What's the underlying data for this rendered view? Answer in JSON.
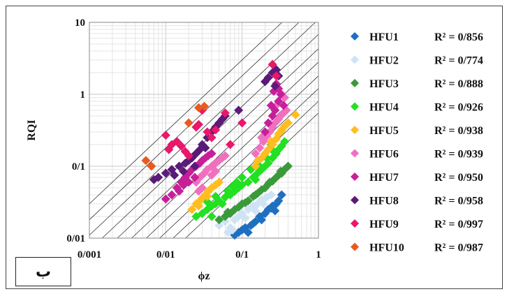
{
  "chart_data": {
    "type": "scatter",
    "xlabel": "ϕz",
    "ylabel": "RQI",
    "xscale": "log",
    "yscale": "log",
    "xlim": [
      0.001,
      1
    ],
    "ylim": [
      0.01,
      10
    ],
    "x_tick_labels": [
      "0/001",
      "0/01",
      "0/1",
      "1"
    ],
    "y_tick_labels": [
      "0/01",
      "0/1",
      "1",
      "10"
    ],
    "grid": true,
    "legend_position": "right",
    "panel_label": "ب",
    "guide_lines_slope": 1,
    "guide_line_intercepts": [
      0.55,
      0.8,
      1.2,
      1.8,
      2.8,
      4.3,
      6.8,
      11,
      18,
      30
    ],
    "series": [
      {
        "name": "HFU1",
        "r2": "R² = 0/856",
        "color": "#1f6fc0",
        "points": [
          [
            0.08,
            0.011
          ],
          [
            0.1,
            0.013
          ],
          [
            0.12,
            0.012
          ],
          [
            0.13,
            0.015
          ],
          [
            0.15,
            0.017
          ],
          [
            0.17,
            0.02
          ],
          [
            0.2,
            0.022
          ],
          [
            0.22,
            0.025
          ],
          [
            0.25,
            0.028
          ],
          [
            0.28,
            0.03
          ],
          [
            0.3,
            0.033
          ],
          [
            0.33,
            0.04
          ],
          [
            0.11,
            0.014
          ],
          [
            0.14,
            0.016
          ],
          [
            0.18,
            0.018
          ],
          [
            0.24,
            0.026
          ],
          [
            0.27,
            0.024
          ],
          [
            0.09,
            0.012
          ]
        ]
      },
      {
        "name": "HFU2",
        "r2": "R² = 0/774",
        "color": "#cfe3f5",
        "points": [
          [
            0.05,
            0.015
          ],
          [
            0.06,
            0.017
          ],
          [
            0.07,
            0.014
          ],
          [
            0.08,
            0.018
          ],
          [
            0.09,
            0.02
          ],
          [
            0.1,
            0.022
          ],
          [
            0.12,
            0.025
          ],
          [
            0.14,
            0.028
          ],
          [
            0.16,
            0.03
          ],
          [
            0.18,
            0.034
          ],
          [
            0.21,
            0.037
          ],
          [
            0.24,
            0.04
          ],
          [
            0.065,
            0.012
          ],
          [
            0.075,
            0.013
          ],
          [
            0.11,
            0.019
          ],
          [
            0.15,
            0.024
          ],
          [
            0.19,
            0.03
          ]
        ]
      },
      {
        "name": "HFU3",
        "r2": "R² = 0/888",
        "color": "#3a9a3a",
        "points": [
          [
            0.05,
            0.018
          ],
          [
            0.06,
            0.02
          ],
          [
            0.07,
            0.022
          ],
          [
            0.08,
            0.025
          ],
          [
            0.09,
            0.027
          ],
          [
            0.1,
            0.03
          ],
          [
            0.12,
            0.033
          ],
          [
            0.14,
            0.038
          ],
          [
            0.16,
            0.042
          ],
          [
            0.18,
            0.047
          ],
          [
            0.2,
            0.05
          ],
          [
            0.22,
            0.056
          ],
          [
            0.25,
            0.062
          ],
          [
            0.28,
            0.07
          ],
          [
            0.3,
            0.075
          ],
          [
            0.33,
            0.08
          ],
          [
            0.36,
            0.09
          ],
          [
            0.4,
            0.1
          ],
          [
            0.065,
            0.023
          ],
          [
            0.11,
            0.031
          ],
          [
            0.15,
            0.04
          ],
          [
            0.23,
            0.06
          ],
          [
            0.32,
            0.085
          ]
        ]
      },
      {
        "name": "HFU4",
        "r2": "R² = 0/926",
        "color": "#22e022",
        "points": [
          [
            0.025,
            0.02
          ],
          [
            0.03,
            0.022
          ],
          [
            0.035,
            0.025
          ],
          [
            0.04,
            0.028
          ],
          [
            0.045,
            0.03
          ],
          [
            0.05,
            0.033
          ],
          [
            0.06,
            0.037
          ],
          [
            0.07,
            0.04
          ],
          [
            0.08,
            0.045
          ],
          [
            0.09,
            0.05
          ],
          [
            0.1,
            0.055
          ],
          [
            0.12,
            0.06
          ],
          [
            0.14,
            0.07
          ],
          [
            0.16,
            0.08
          ],
          [
            0.18,
            0.09
          ],
          [
            0.2,
            0.1
          ],
          [
            0.22,
            0.11
          ],
          [
            0.25,
            0.13
          ],
          [
            0.28,
            0.15
          ],
          [
            0.3,
            0.17
          ],
          [
            0.33,
            0.19
          ],
          [
            0.36,
            0.22
          ],
          [
            0.04,
            0.02
          ],
          [
            0.055,
            0.03
          ],
          [
            0.065,
            0.045
          ],
          [
            0.075,
            0.052
          ],
          [
            0.085,
            0.06
          ],
          [
            0.1,
            0.07
          ],
          [
            0.13,
            0.09
          ],
          [
            0.17,
            0.1
          ],
          [
            0.21,
            0.13
          ],
          [
            0.26,
            0.16
          ],
          [
            0.045,
            0.038
          ],
          [
            0.035,
            0.032
          ],
          [
            0.15,
            0.065
          ],
          [
            0.24,
            0.2
          ]
        ]
      },
      {
        "name": "HFU5",
        "r2": "R² = 0/938",
        "color": "#ffbd1f",
        "points": [
          [
            0.022,
            0.025
          ],
          [
            0.025,
            0.03
          ],
          [
            0.028,
            0.033
          ],
          [
            0.03,
            0.036
          ],
          [
            0.033,
            0.04
          ],
          [
            0.036,
            0.045
          ],
          [
            0.04,
            0.05
          ],
          [
            0.045,
            0.055
          ],
          [
            0.05,
            0.06
          ],
          [
            0.15,
            0.1
          ],
          [
            0.18,
            0.13
          ],
          [
            0.2,
            0.15
          ],
          [
            0.22,
            0.17
          ],
          [
            0.25,
            0.2
          ],
          [
            0.28,
            0.24
          ],
          [
            0.3,
            0.28
          ],
          [
            0.33,
            0.32
          ],
          [
            0.36,
            0.36
          ],
          [
            0.4,
            0.4
          ],
          [
            0.5,
            0.52
          ],
          [
            0.16,
            0.12
          ],
          [
            0.24,
            0.22
          ],
          [
            0.32,
            0.3
          ],
          [
            0.035,
            0.038
          ],
          [
            0.027,
            0.028
          ]
        ]
      },
      {
        "name": "HFU6",
        "r2": "R² = 0/939",
        "color": "#f070c0",
        "points": [
          [
            0.025,
            0.06
          ],
          [
            0.028,
            0.07
          ],
          [
            0.032,
            0.08
          ],
          [
            0.035,
            0.09
          ],
          [
            0.04,
            0.1
          ],
          [
            0.045,
            0.11
          ],
          [
            0.05,
            0.12
          ],
          [
            0.055,
            0.13
          ],
          [
            0.06,
            0.14
          ],
          [
            0.03,
            0.05
          ],
          [
            0.027,
            0.045
          ],
          [
            0.04,
            0.075
          ],
          [
            0.15,
            0.15
          ],
          [
            0.17,
            0.18
          ],
          [
            0.19,
            0.22
          ],
          [
            0.21,
            0.26
          ],
          [
            0.23,
            0.3
          ],
          [
            0.25,
            0.35
          ],
          [
            0.27,
            0.4
          ],
          [
            0.3,
            0.45
          ],
          [
            0.32,
            0.5
          ],
          [
            0.35,
            0.55
          ],
          [
            0.38,
            0.6
          ],
          [
            0.3,
            0.8
          ],
          [
            0.33,
            1.0
          ],
          [
            0.36,
            0.9
          ],
          [
            0.28,
            0.7
          ],
          [
            0.18,
            0.25
          ],
          [
            0.045,
            0.085
          ]
        ]
      },
      {
        "name": "HFU7",
        "r2": "R² = 0/950",
        "color": "#c81e9a",
        "points": [
          [
            0.012,
            0.04
          ],
          [
            0.014,
            0.05
          ],
          [
            0.016,
            0.06
          ],
          [
            0.018,
            0.07
          ],
          [
            0.02,
            0.08
          ],
          [
            0.022,
            0.09
          ],
          [
            0.025,
            0.1
          ],
          [
            0.028,
            0.11
          ],
          [
            0.03,
            0.12
          ],
          [
            0.033,
            0.13
          ],
          [
            0.036,
            0.14
          ],
          [
            0.04,
            0.15
          ],
          [
            0.01,
            0.035
          ],
          [
            0.015,
            0.045
          ],
          [
            0.024,
            0.07
          ],
          [
            0.2,
            0.3
          ],
          [
            0.22,
            0.4
          ],
          [
            0.25,
            0.5
          ],
          [
            0.27,
            0.6
          ],
          [
            0.3,
            0.8
          ],
          [
            0.32,
            1.0
          ],
          [
            0.3,
            1.2
          ],
          [
            0.28,
            1.4
          ],
          [
            0.26,
            1.1
          ],
          [
            0.24,
            0.7
          ],
          [
            0.35,
            0.7
          ],
          [
            0.02,
            0.06
          ],
          [
            0.017,
            0.055
          ]
        ]
      },
      {
        "name": "HFU8",
        "r2": "R² = 0/958",
        "color": "#5a1a78",
        "points": [
          [
            0.007,
            0.065
          ],
          [
            0.008,
            0.07
          ],
          [
            0.01,
            0.08
          ],
          [
            0.012,
            0.09
          ],
          [
            0.015,
            0.1
          ],
          [
            0.018,
            0.11
          ],
          [
            0.02,
            0.12
          ],
          [
            0.022,
            0.13
          ],
          [
            0.025,
            0.15
          ],
          [
            0.028,
            0.17
          ],
          [
            0.03,
            0.2
          ],
          [
            0.035,
            0.25
          ],
          [
            0.04,
            0.3
          ],
          [
            0.045,
            0.35
          ],
          [
            0.05,
            0.4
          ],
          [
            0.055,
            0.45
          ],
          [
            0.06,
            0.5
          ],
          [
            0.09,
            0.6
          ],
          [
            0.2,
            1.5
          ],
          [
            0.22,
            1.7
          ],
          [
            0.25,
            2.0
          ],
          [
            0.28,
            2.2
          ],
          [
            0.3,
            1.8
          ],
          [
            0.27,
            1.3
          ],
          [
            0.013,
            0.075
          ],
          [
            0.017,
            0.085
          ],
          [
            0.024,
            0.1
          ],
          [
            0.033,
            0.18
          ]
        ]
      },
      {
        "name": "HFU9",
        "r2": "R² = 0/997",
        "color": "#e8186a",
        "points": [
          [
            0.01,
            0.27
          ],
          [
            0.012,
            0.2
          ],
          [
            0.014,
            0.22
          ],
          [
            0.016,
            0.19
          ],
          [
            0.018,
            0.16
          ],
          [
            0.02,
            0.14
          ],
          [
            0.025,
            0.35
          ],
          [
            0.03,
            0.6
          ],
          [
            0.035,
            0.3
          ],
          [
            0.04,
            0.25
          ],
          [
            0.06,
            0.55
          ],
          [
            0.1,
            0.4
          ],
          [
            0.07,
            0.2
          ],
          [
            0.25,
            2.6
          ],
          [
            0.28,
            1.8
          ],
          [
            0.011,
            0.17
          ],
          [
            0.027,
            0.38
          ],
          [
            0.045,
            0.32
          ]
        ]
      },
      {
        "name": "HFU10",
        "r2": "R² = 0/987",
        "color": "#e85a20",
        "points": [
          [
            0.0055,
            0.12
          ],
          [
            0.027,
            0.65
          ],
          [
            0.032,
            0.68
          ],
          [
            0.02,
            0.4
          ],
          [
            0.0065,
            0.1
          ]
        ]
      }
    ]
  }
}
